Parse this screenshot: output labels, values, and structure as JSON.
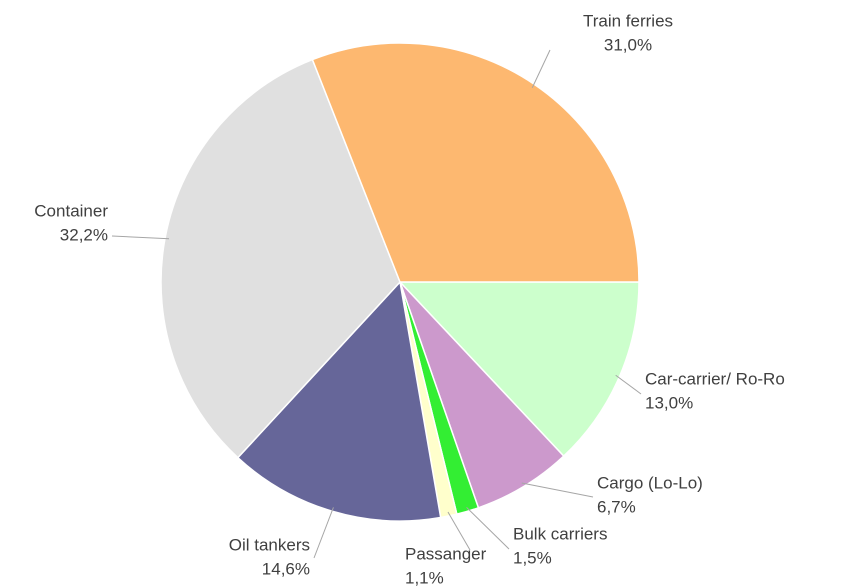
{
  "chart_data": {
    "type": "pie",
    "categories": [
      "Car-carrier/ Ro-Ro",
      "Cargo (Lo-Lo)",
      "Bulk carriers",
      "Passanger",
      "Oil tankers",
      "Container",
      "Train ferries"
    ],
    "values": [
      13.0,
      6.7,
      1.5,
      1.1,
      14.6,
      32.2,
      31.0
    ],
    "value_labels": [
      "13,0%",
      "6,7%",
      "1,5%",
      "1,1%",
      "14,6%",
      "32,2%",
      "31,0%"
    ],
    "colors": [
      "#CCFFCC",
      "#CC99CC",
      "#33EE33",
      "#FFFFCC",
      "#666699",
      "#E0E0E0",
      "#FDB870"
    ]
  }
}
